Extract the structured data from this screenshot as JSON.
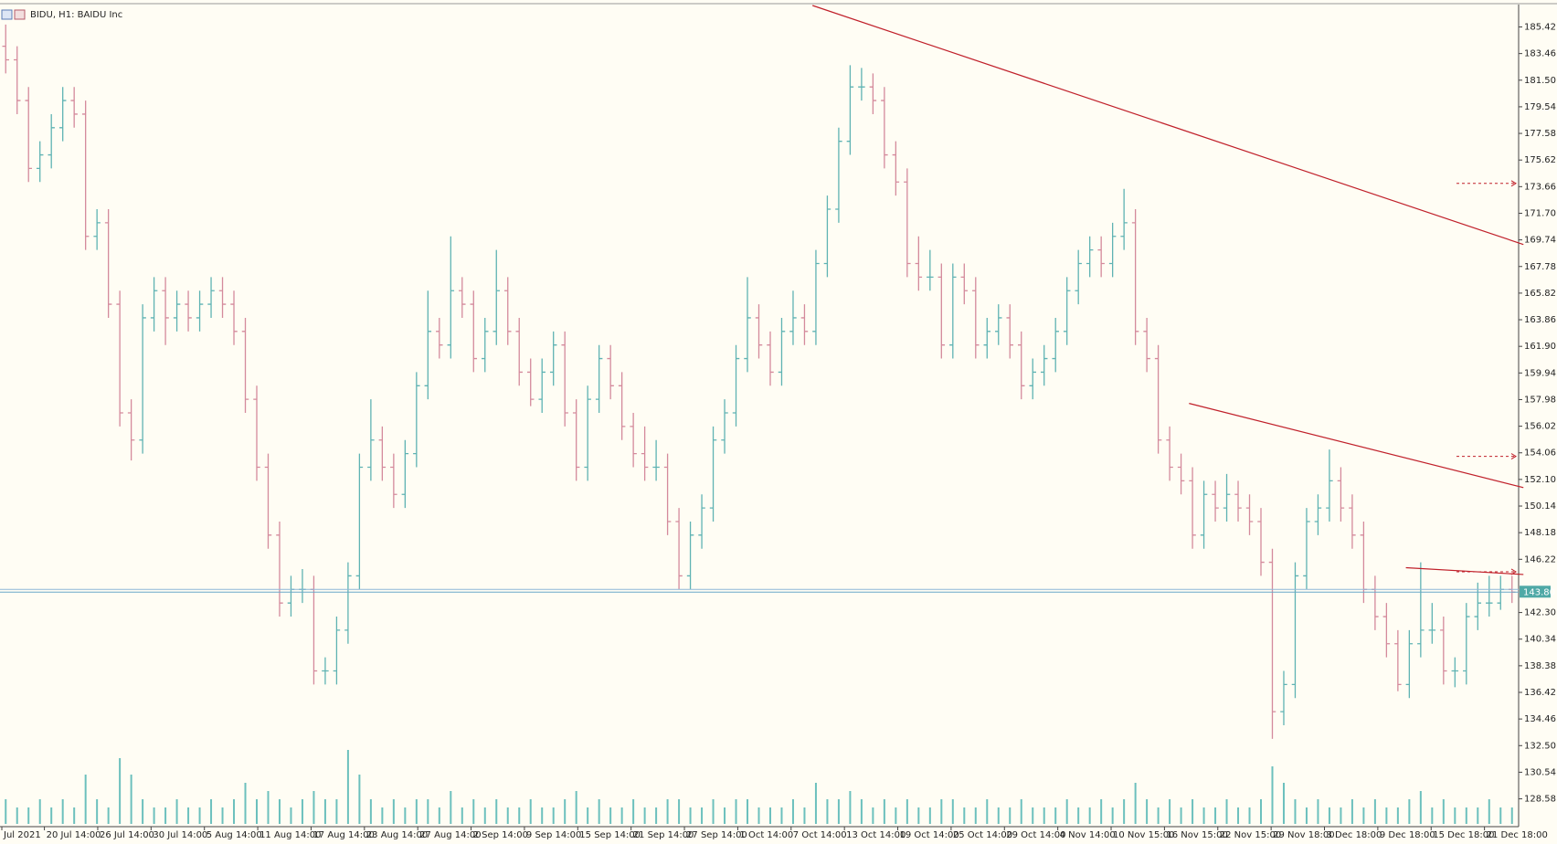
{
  "chart_data": {
    "type": "ohlc",
    "title": "BIDU, H1:  BAIDU Inc",
    "up_color": "#5fb3b3",
    "down_color": "#d48a9c",
    "volume_color": "#6cc0bd",
    "line_color": "#c0202a",
    "ylim": [
      126.6,
      187.0
    ],
    "yticks": [
      185.42,
      183.46,
      {
        "value": 181.5,
        "label": "181.50"
      },
      179.54,
      177.58,
      175.62,
      173.66,
      {
        "value": 171.7,
        "label": "171.70"
      },
      169.74,
      167.78,
      165.82,
      163.86,
      {
        "value": 161.9,
        "label": "161.90"
      },
      159.94,
      157.98,
      156.02,
      154.06,
      {
        "value": 152.1,
        "label": "152.10"
      },
      150.14,
      148.18,
      146.22,
      {
        "value": 142.3,
        "label": "142.30"
      },
      140.34,
      138.38,
      136.42,
      134.46,
      {
        "value": 132.5,
        "label": "132.50"
      },
      130.54,
      128.58
    ],
    "current_price": {
      "value": 143.8,
      "label": "143.80"
    },
    "categories": [
      "Jul 2021",
      "20 Jul 14:00",
      "26 Jul 14:00",
      "30 Jul 14:00",
      "5 Aug 14:00",
      "11 Aug 14:00",
      "17 Aug 14:00",
      "23 Aug 14:00",
      "27 Aug 14:00",
      "2 Sep 14:00",
      "9 Sep 14:00",
      "15 Sep 14:00",
      "21 Sep 14:00",
      "27 Sep 14:00",
      "1 Oct 14:00",
      "7 Oct 14:00",
      "13 Oct 14:00",
      "19 Oct 14:00",
      "25 Oct 14:00",
      "29 Oct 14:00",
      "4 Nov 14:00",
      "10 Nov 15:00",
      "16 Nov 15:00",
      "22 Nov 15:00",
      "29 Nov 18:00",
      "3 Dec 18:00",
      "9 Dec 18:00",
      "15 Dec 18:00",
      "21 Dec 18:00"
    ],
    "ohlc": [
      [
        184,
        185.6,
        182,
        183
      ],
      [
        183,
        184,
        179,
        180
      ],
      [
        180,
        181,
        174,
        175
      ],
      [
        175,
        177,
        174,
        176
      ],
      [
        176,
        179,
        175,
        178
      ],
      [
        178,
        181,
        177,
        180
      ],
      [
        180,
        181,
        178,
        179
      ],
      [
        179,
        180,
        169,
        170
      ],
      [
        170,
        172,
        169,
        171
      ],
      [
        171,
        172,
        164,
        165
      ],
      [
        165,
        166,
        156,
        157
      ],
      [
        157,
        158,
        153.5,
        155
      ],
      [
        155,
        165,
        154,
        164
      ],
      [
        164,
        167,
        163,
        166
      ],
      [
        166,
        167,
        162,
        164
      ],
      [
        164,
        166,
        163,
        165
      ],
      [
        165,
        166,
        163,
        164
      ],
      [
        164,
        166,
        163,
        165
      ],
      [
        165,
        167,
        164,
        166
      ],
      [
        166,
        167,
        164,
        165
      ],
      [
        165,
        166,
        162,
        163
      ],
      [
        163,
        164,
        157,
        158
      ],
      [
        158,
        159,
        152,
        153
      ],
      [
        153,
        154,
        147,
        148
      ],
      [
        148,
        149,
        142,
        143
      ],
      [
        143,
        145,
        142,
        144
      ],
      [
        144,
        145.5,
        143,
        144
      ],
      [
        144,
        145,
        137,
        138
      ],
      [
        138,
        139,
        137,
        138
      ],
      [
        138,
        142,
        137,
        141
      ],
      [
        141,
        146,
        140,
        145
      ],
      [
        145,
        154,
        144,
        153
      ],
      [
        153,
        158,
        152,
        155
      ],
      [
        155,
        156,
        152,
        153
      ],
      [
        153,
        154,
        150,
        151
      ],
      [
        151,
        155,
        150,
        154
      ],
      [
        154,
        160,
        153,
        159
      ],
      [
        159,
        166,
        158,
        163
      ],
      [
        163,
        164,
        161,
        162
      ],
      [
        162,
        170,
        161,
        166
      ],
      [
        166,
        167,
        164,
        165
      ],
      [
        165,
        166,
        160,
        161
      ],
      [
        161,
        164,
        160,
        163
      ],
      [
        163,
        169,
        162,
        166
      ],
      [
        166,
        167,
        162,
        163
      ],
      [
        163,
        164,
        159,
        160
      ],
      [
        160,
        161,
        157.5,
        158
      ],
      [
        158,
        161,
        157,
        160
      ],
      [
        160,
        163,
        159,
        162
      ],
      [
        162,
        163,
        156,
        157
      ],
      [
        157,
        158,
        152,
        153
      ],
      [
        153,
        159,
        152,
        158
      ],
      [
        158,
        162,
        157,
        161
      ],
      [
        161,
        162,
        158,
        159
      ],
      [
        159,
        160,
        155,
        156
      ],
      [
        156,
        157,
        153,
        154
      ],
      [
        154,
        156,
        152,
        153
      ],
      [
        153,
        155,
        152,
        153
      ],
      [
        153,
        154,
        148,
        149
      ],
      [
        149,
        150,
        144,
        145
      ],
      [
        145,
        149,
        144,
        148
      ],
      [
        148,
        151,
        147,
        150
      ],
      [
        150,
        156,
        149,
        155
      ],
      [
        155,
        158,
        154,
        157
      ],
      [
        157,
        162,
        156,
        161
      ],
      [
        161,
        167,
        160,
        164
      ],
      [
        164,
        165,
        161,
        162
      ],
      [
        162,
        163,
        159,
        160
      ],
      [
        160,
        164,
        159,
        163
      ],
      [
        163,
        166,
        162,
        164
      ],
      [
        164,
        165,
        162,
        163
      ],
      [
        163,
        169,
        162,
        168
      ],
      [
        168,
        173,
        167,
        172
      ],
      [
        172,
        178,
        171,
        177
      ],
      [
        177,
        182.6,
        176,
        181
      ],
      [
        181,
        182.4,
        180,
        181
      ],
      [
        181,
        182,
        179,
        180
      ],
      [
        180,
        181,
        175,
        176
      ],
      [
        176,
        177,
        173,
        174
      ],
      [
        174,
        175,
        167,
        168
      ],
      [
        168,
        170,
        166,
        167
      ],
      [
        167,
        169,
        166,
        167
      ],
      [
        167,
        168,
        161,
        162
      ],
      [
        162,
        168,
        161,
        167
      ],
      [
        167,
        168,
        165,
        166
      ],
      [
        166,
        167,
        161,
        162
      ],
      [
        162,
        164,
        161,
        163
      ],
      [
        163,
        165,
        162,
        164
      ],
      [
        164,
        165,
        161,
        162
      ],
      [
        162,
        163,
        158,
        159
      ],
      [
        159,
        161,
        158,
        160
      ],
      [
        160,
        162,
        159,
        161
      ],
      [
        161,
        164,
        160,
        163
      ],
      [
        163,
        167,
        162,
        166
      ],
      [
        166,
        169,
        165,
        168
      ],
      [
        168,
        170,
        167,
        169
      ],
      [
        169,
        170,
        167,
        168
      ],
      [
        168,
        171,
        167,
        170
      ],
      [
        170,
        173.5,
        169,
        171
      ],
      [
        171,
        172,
        162,
        163
      ],
      [
        163,
        164,
        160,
        161
      ],
      [
        161,
        162,
        154,
        155
      ],
      [
        155,
        156,
        152,
        153
      ],
      [
        153,
        154,
        151,
        152
      ],
      [
        152,
        153,
        147,
        148
      ],
      [
        148,
        152,
        147,
        151
      ],
      [
        151,
        152,
        149,
        150
      ],
      [
        150,
        152.5,
        149,
        151
      ],
      [
        151,
        152,
        149,
        150
      ],
      [
        150,
        151,
        148,
        149
      ],
      [
        149,
        150,
        145,
        146
      ],
      [
        146,
        147,
        133,
        135
      ],
      [
        135,
        138,
        134,
        137
      ],
      [
        137,
        146,
        136,
        145
      ],
      [
        145,
        150,
        144,
        149
      ],
      [
        149,
        151,
        148,
        150
      ],
      [
        150,
        154.3,
        149,
        152
      ],
      [
        152,
        153,
        149,
        150
      ],
      [
        150,
        151,
        147,
        148
      ],
      [
        148,
        149,
        143,
        144
      ],
      [
        144,
        145,
        141,
        142
      ],
      [
        142,
        143,
        139,
        140
      ],
      [
        140,
        141,
        136.5,
        137
      ],
      [
        137,
        141,
        136,
        140
      ],
      [
        140,
        146,
        139,
        141
      ],
      [
        141,
        143,
        140,
        141
      ],
      [
        141,
        142,
        137,
        138
      ],
      [
        138,
        139,
        136.8,
        138
      ],
      [
        138,
        143,
        137,
        142
      ],
      [
        142,
        144.5,
        141,
        143
      ],
      [
        143,
        145,
        142,
        143
      ],
      [
        143,
        145,
        142.5,
        144
      ],
      [
        144,
        145,
        143,
        143.8
      ]
    ],
    "volume": [
      3,
      2,
      2,
      3,
      2,
      3,
      2,
      6,
      3,
      2,
      8,
      6,
      3,
      2,
      2,
      3,
      2,
      2,
      3,
      2,
      3,
      5,
      3,
      4,
      3,
      2,
      3,
      4,
      3,
      3,
      9,
      6,
      3,
      2,
      3,
      2,
      3,
      3,
      2,
      4,
      2,
      3,
      2,
      3,
      2,
      2,
      3,
      2,
      2,
      3,
      4,
      2,
      3,
      2,
      2,
      3,
      2,
      2,
      3,
      3,
      2,
      2,
      3,
      2,
      3,
      3,
      2,
      2,
      2,
      3,
      2,
      5,
      3,
      3,
      4,
      3,
      2,
      3,
      2,
      3,
      2,
      2,
      3,
      3,
      2,
      2,
      3,
      2,
      2,
      3,
      2,
      2,
      2,
      3,
      2,
      2,
      3,
      2,
      3,
      5,
      3,
      2,
      3,
      2,
      3,
      2,
      2,
      3,
      2,
      2,
      3,
      7,
      5,
      3,
      2,
      3,
      2,
      2,
      3,
      2,
      3,
      2,
      2,
      3,
      4,
      2,
      3,
      2,
      2,
      2,
      3,
      2,
      2
    ],
    "trendlines": [
      {
        "from": [
          70.7,
          187.0
        ],
        "to": [
          133,
          169.4
        ]
      },
      {
        "from": [
          103.7,
          157.7
        ],
        "to": [
          133,
          151.5
        ]
      },
      {
        "from": [
          122.7,
          145.6
        ],
        "to": [
          133,
          145.1
        ]
      }
    ],
    "price_arrows": [
      173.9,
      153.8,
      145.3
    ]
  }
}
